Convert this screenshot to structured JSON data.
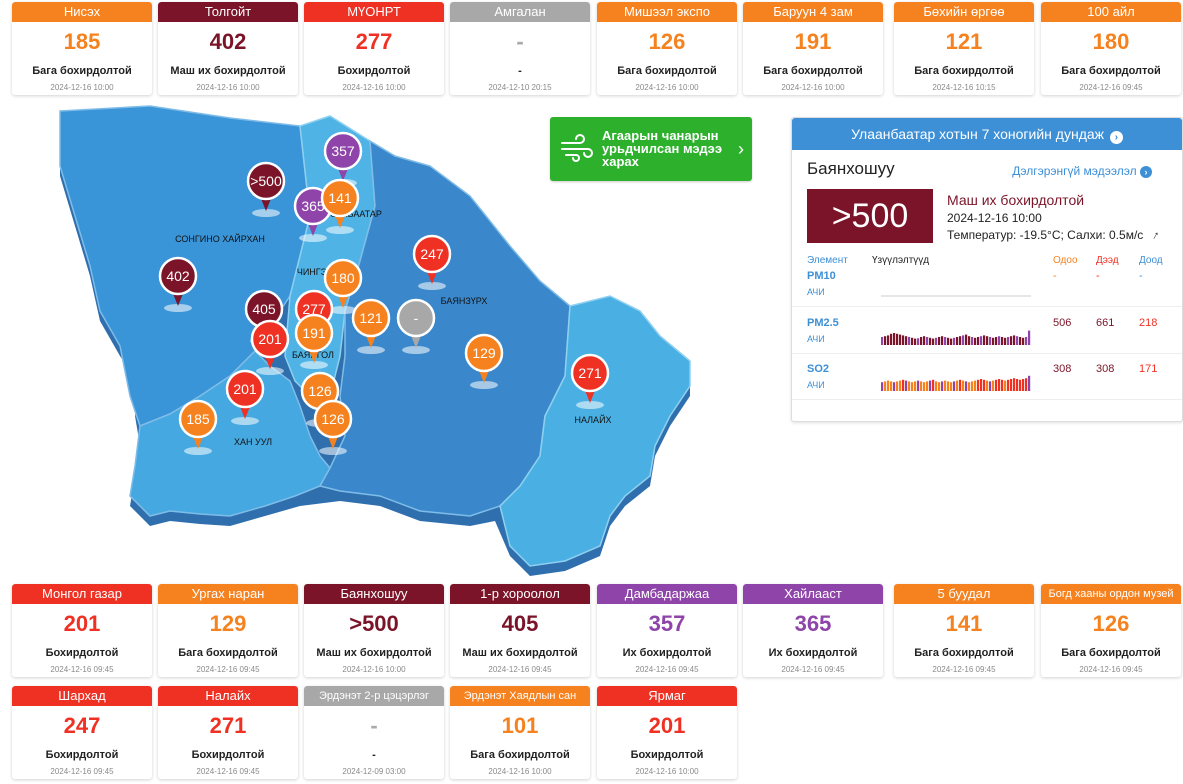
{
  "colors": {
    "good": "#f5821f",
    "unhealthy": "#ef3123",
    "very_unhealthy": "#7b1428",
    "hazardous": "#8e44a8",
    "nodata": "#a8a8a8",
    "accent": "#3d8fd6",
    "forecast": "#2db12d"
  },
  "stations_top": [
    {
      "name": "Нисэх",
      "value": "185",
      "level": "Бага бохирдолтой",
      "time": "2024-12-16 10:00",
      "color": "#f5821f"
    },
    {
      "name": "Толгойт",
      "value": "402",
      "level": "Маш их бохирдолтой",
      "time": "2024-12-16 10:00",
      "color": "#7b1428"
    },
    {
      "name": "МҮОНРТ",
      "value": "277",
      "level": "Бохирдолтой",
      "time": "2024-12-16 10:00",
      "color": "#ef3123"
    },
    {
      "name": "Амгалан",
      "value": "-",
      "level": "-",
      "time": "2024-12-10 20:15",
      "color": "#a8a8a8"
    },
    {
      "name": "Мишээл экспо",
      "value": "126",
      "level": "Бага бохирдолтой",
      "time": "2024-12-16 10:00",
      "color": "#f5821f"
    },
    {
      "name": "Баруун 4 зам",
      "value": "191",
      "level": "Бага бохирдолтой",
      "time": "2024-12-16 10:00",
      "color": "#f5821f"
    },
    {
      "name": "Бөхийн өргөө",
      "value": "121",
      "level": "Бага бохирдолтой",
      "time": "2024-12-16 10:15",
      "color": "#f5821f"
    },
    {
      "name": "100 айл",
      "value": "180",
      "level": "Бага бохирдолтой",
      "time": "2024-12-16 09:45",
      "color": "#f5821f"
    }
  ],
  "stations_row2": [
    {
      "name": "Монгол газар",
      "value": "201",
      "level": "Бохирдолтой",
      "time": "2024-12-16 09:45",
      "color": "#ef3123"
    },
    {
      "name": "Ургах наран",
      "value": "129",
      "level": "Бага бохирдолтой",
      "time": "2024-12-16 09:45",
      "color": "#f5821f"
    },
    {
      "name": "Баянхошуу",
      "value": ">500",
      "level": "Маш их бохирдолтой",
      "time": "2024-12-16 10:00",
      "color": "#7b1428"
    },
    {
      "name": "1-р хороолол",
      "value": "405",
      "level": "Маш их бохирдолтой",
      "time": "2024-12-16 09:45",
      "color": "#7b1428"
    },
    {
      "name": "Дамбадаржаа",
      "value": "357",
      "level": "Их бохирдолтой",
      "time": "2024-12-16 09:45",
      "color": "#8e44a8"
    },
    {
      "name": "Хайлааст",
      "value": "365",
      "level": "Их бохирдолтой",
      "time": "2024-12-16 09:45",
      "color": "#8e44a8"
    },
    {
      "name": "5 буудал",
      "value": "141",
      "level": "Бага бохирдолтой",
      "time": "2024-12-16 09:45",
      "color": "#f5821f"
    },
    {
      "name": "Богд хааны ордон музей",
      "value": "126",
      "level": "Бага бохирдолтой",
      "time": "2024-12-16 09:45",
      "color": "#f5821f"
    }
  ],
  "stations_row3": [
    {
      "name": "Шархад",
      "value": "247",
      "level": "Бохирдолтой",
      "time": "2024-12-16 09:45",
      "color": "#ef3123"
    },
    {
      "name": "Налайх",
      "value": "271",
      "level": "Бохирдолтой",
      "time": "2024-12-16 09:45",
      "color": "#ef3123"
    },
    {
      "name": "Эрдэнэт 2-р цэцэрлэг",
      "value": "-",
      "level": "-",
      "time": "2024-12-09 03:00",
      "color": "#a8a8a8"
    },
    {
      "name": "Эрдэнэт Хаядлын сан",
      "value": "101",
      "level": "Бага бохирдолтой",
      "time": "2024-12-16 10:00",
      "color": "#f5821f"
    },
    {
      "name": "Ярмаг",
      "value": "201",
      "level": "Бохирдолтой",
      "time": "2024-12-16 10:00",
      "color": "#ef3123"
    }
  ],
  "map": {
    "districts": {
      "songino": "СОНГИНО ХАЙРХАН",
      "khan_uul": "ХАН УУЛ",
      "bayanzurkh": "БАЯНЗҮРХ",
      "nalaikh": "НАЛАЙХ",
      "chingeltei": "ЧИНГЭ",
      "bayangol": "БАЯНГОЛ",
      "sukhbaatar": "СҮХБААТАР"
    },
    "pins": [
      {
        "value": ">500",
        "color": "#7b1428"
      },
      {
        "value": "357",
        "color": "#8e44a8"
      },
      {
        "value": "365",
        "color": "#8e44a8"
      },
      {
        "value": "141",
        "color": "#f5821f"
      },
      {
        "value": "247",
        "color": "#ef3123"
      },
      {
        "value": "402",
        "color": "#7b1428"
      },
      {
        "value": "180",
        "color": "#f5821f"
      },
      {
        "value": "405",
        "color": "#7b1428"
      },
      {
        "value": "277",
        "color": "#ef3123"
      },
      {
        "value": "201",
        "color": "#ef3123"
      },
      {
        "value": "191",
        "color": "#f5821f"
      },
      {
        "value": "121",
        "color": "#f5821f"
      },
      {
        "value": "-",
        "color": "#a8a8a8"
      },
      {
        "value": "129",
        "color": "#f5821f"
      },
      {
        "value": "271",
        "color": "#ef3123"
      },
      {
        "value": "201",
        "color": "#ef3123"
      },
      {
        "value": "126",
        "color": "#f5821f"
      },
      {
        "value": "185",
        "color": "#f5821f"
      },
      {
        "value": "126",
        "color": "#f5821f"
      }
    ]
  },
  "forecast": {
    "label": "Агаарын чанарын урьдчилсан мэдээ харах",
    "icon": "wind-icon"
  },
  "panel": {
    "title": "Улаанбаатар хотын 7 хоногийн дундаж",
    "station": "Баянхошуу",
    "more": "Дэлгэрэнгүй мэдээлэл",
    "aqi": ">500",
    "level": "Маш их бохирдолтой",
    "time": "2024-12-16 10:00",
    "weather": "Температур: -19.5°C; Салхи: 0.5м/с",
    "headers": {
      "element": "Элемент",
      "trend": "Үзүүлэлтүүд",
      "now": "Одоо",
      "max": "Дээд",
      "min": "Доод"
    },
    "rows": [
      {
        "name": "PM10",
        "sub": "АЧИ",
        "now": "-",
        "max": "-",
        "min": "-",
        "bars": []
      },
      {
        "name": "PM2.5",
        "sub": "АЧИ",
        "now": "506",
        "max": "661",
        "min": "218",
        "bars": [
          0.5,
          0.55,
          0.6,
          0.7,
          0.75,
          0.7,
          0.65,
          0.6,
          0.55,
          0.5,
          0.45,
          0.4,
          0.42,
          0.5,
          0.55,
          0.5,
          0.45,
          0.4,
          0.45,
          0.5,
          0.55,
          0.5,
          0.45,
          0.4,
          0.45,
          0.5,
          0.55,
          0.6,
          0.65,
          0.55,
          0.5,
          0.45,
          0.5,
          0.55,
          0.6,
          0.55,
          0.5,
          0.45,
          0.5,
          0.55,
          0.5,
          0.45,
          0.5,
          0.55,
          0.6,
          0.55,
          0.5,
          0.45,
          0.5,
          0.9
        ]
      },
      {
        "name": "SO2",
        "sub": "АЧИ",
        "now": "308",
        "max": "308",
        "min": "171",
        "bars": [
          0.55,
          0.6,
          0.65,
          0.6,
          0.55,
          0.6,
          0.65,
          0.7,
          0.65,
          0.6,
          0.55,
          0.6,
          0.65,
          0.6,
          0.55,
          0.6,
          0.65,
          0.7,
          0.6,
          0.55,
          0.6,
          0.65,
          0.6,
          0.55,
          0.6,
          0.65,
          0.7,
          0.65,
          0.6,
          0.55,
          0.6,
          0.65,
          0.7,
          0.75,
          0.7,
          0.65,
          0.6,
          0.65,
          0.7,
          0.75,
          0.7,
          0.65,
          0.7,
          0.75,
          0.8,
          0.75,
          0.7,
          0.75,
          0.8,
          0.95
        ]
      }
    ]
  }
}
